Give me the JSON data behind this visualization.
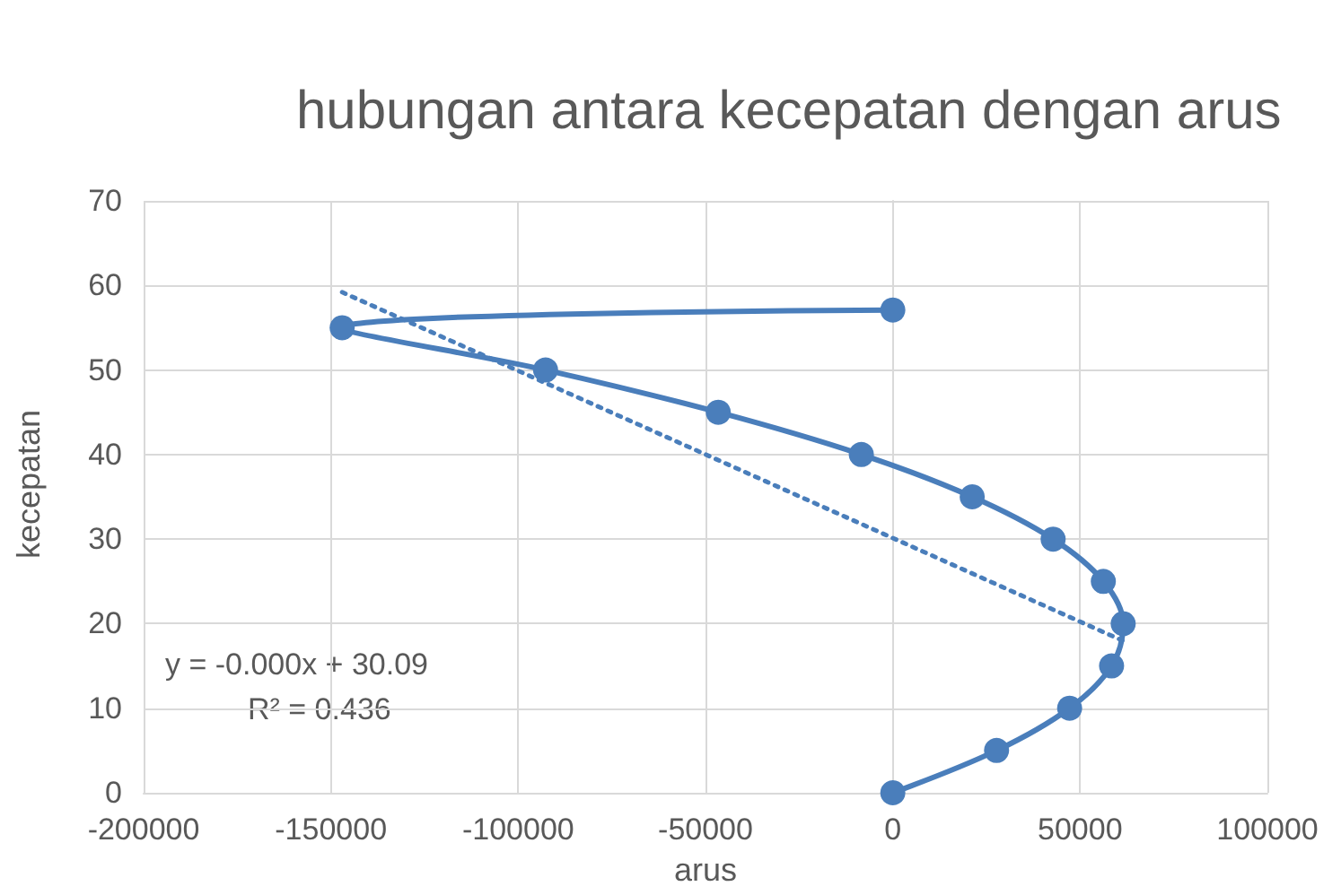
{
  "chart_data": {
    "type": "line",
    "title": "hubungan antara kecepatan dengan arus",
    "xlabel": "arus",
    "ylabel": "kecepatan",
    "annotations": [
      "y = -0.000x + 30.09",
      "R² = 0.436"
    ],
    "series": [
      {
        "color": "#4a7ebb",
        "x": [
          0,
          27700,
          47200,
          58400,
          61500,
          56200,
          42800,
          21200,
          -8400,
          -46600,
          -92700,
          -147000,
          0
        ],
        "values": [
          0,
          5,
          10,
          15,
          20,
          25,
          30,
          35,
          40,
          45,
          50,
          55,
          57.1
        ]
      },
      {
        "type": "line",
        "color": "#4a7ebb",
        "line_style": "dotted",
        "marker": "none",
        "x": [
          -147000,
          61300
        ],
        "values": [
          59.2,
          18.0
        ]
      }
    ],
    "marker": "circle",
    "grid": true,
    "xlim": [
      -200000,
      100000
    ],
    "xticks": [
      -200000,
      -150000,
      -100000,
      -50000,
      0,
      50000,
      100000
    ],
    "ylim": [
      0,
      70
    ],
    "yticks": [
      0,
      10,
      20,
      30,
      40,
      50,
      60,
      70
    ]
  }
}
